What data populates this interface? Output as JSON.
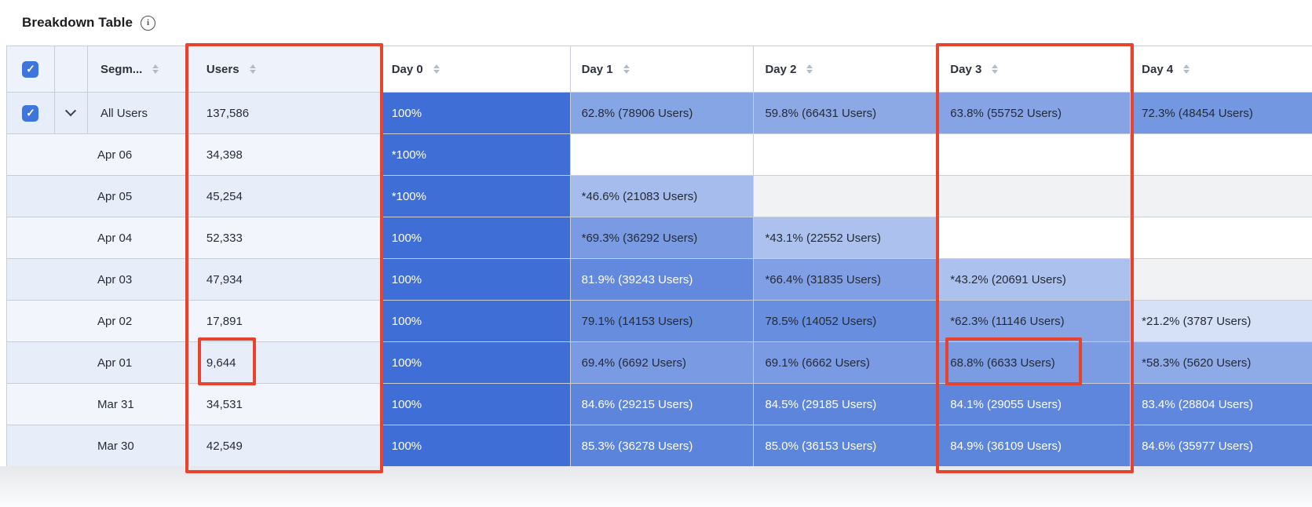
{
  "title": "Breakdown Table",
  "columns": {
    "segment": "Segm...",
    "users": "Users",
    "days": [
      "Day 0",
      "Day 1",
      "Day 2",
      "Day 3",
      "Day 4"
    ]
  },
  "rows": [
    {
      "segment": "All Users",
      "users": "137,586",
      "summary": true,
      "checked": true,
      "expanded": true,
      "days": [
        {
          "label": "100%",
          "pct": 100
        },
        {
          "label": "62.8% (78906 Users)",
          "pct": 62.8
        },
        {
          "label": "59.8% (66431 Users)",
          "pct": 59.8
        },
        {
          "label": "63.8% (55752 Users)",
          "pct": 63.8
        },
        {
          "label": "72.3% (48454 Users)",
          "pct": 72.3
        }
      ]
    },
    {
      "segment": "Apr 06",
      "users": "34,398",
      "days": [
        {
          "label": "*100%",
          "pct": 100
        },
        null,
        null,
        null,
        null
      ]
    },
    {
      "segment": "Apr 05",
      "users": "45,254",
      "days": [
        {
          "label": "*100%",
          "pct": 100
        },
        {
          "label": "*46.6% (21083 Users)",
          "pct": 46.6
        },
        null,
        null,
        null
      ]
    },
    {
      "segment": "Apr 04",
      "users": "52,333",
      "days": [
        {
          "label": "100%",
          "pct": 100
        },
        {
          "label": "*69.3% (36292 Users)",
          "pct": 69.3
        },
        {
          "label": "*43.1% (22552 Users)",
          "pct": 43.1
        },
        null,
        null
      ]
    },
    {
      "segment": "Apr 03",
      "users": "47,934",
      "days": [
        {
          "label": "100%",
          "pct": 100
        },
        {
          "label": "81.9% (39243 Users)",
          "pct": 81.9
        },
        {
          "label": "*66.4% (31835 Users)",
          "pct": 66.4
        },
        {
          "label": "*43.2% (20691 Users)",
          "pct": 43.2
        },
        null
      ]
    },
    {
      "segment": "Apr 02",
      "users": "17,891",
      "days": [
        {
          "label": "100%",
          "pct": 100
        },
        {
          "label": "79.1% (14153 Users)",
          "pct": 79.1
        },
        {
          "label": "78.5% (14052 Users)",
          "pct": 78.5
        },
        {
          "label": "*62.3% (11146 Users)",
          "pct": 62.3
        },
        {
          "label": "*21.2% (3787 Users)",
          "pct": 21.2
        }
      ]
    },
    {
      "segment": "Apr 01",
      "users": "9,644",
      "days": [
        {
          "label": "100%",
          "pct": 100
        },
        {
          "label": "69.4% (6692 Users)",
          "pct": 69.4
        },
        {
          "label": "69.1% (6662 Users)",
          "pct": 69.1
        },
        {
          "label": "68.8% (6633 Users)",
          "pct": 68.8
        },
        {
          "label": "*58.3% (5620 Users)",
          "pct": 58.3
        }
      ]
    },
    {
      "segment": "Mar 31",
      "users": "34,531",
      "days": [
        {
          "label": "100%",
          "pct": 100
        },
        {
          "label": "84.6% (29215 Users)",
          "pct": 84.6
        },
        {
          "label": "84.5% (29185 Users)",
          "pct": 84.5
        },
        {
          "label": "84.1% (29055 Users)",
          "pct": 84.1
        },
        {
          "label": "83.4% (28804 Users)",
          "pct": 83.4
        }
      ]
    },
    {
      "segment": "Mar 30",
      "users": "42,549",
      "days": [
        {
          "label": "100%",
          "pct": 100
        },
        {
          "label": "85.3% (36278 Users)",
          "pct": 85.3
        },
        {
          "label": "85.0% (36153 Users)",
          "pct": 85.0
        },
        {
          "label": "84.9% (36109 Users)",
          "pct": 84.9
        },
        {
          "label": "84.6% (35977 Users)",
          "pct": 84.6
        }
      ]
    }
  ],
  "icons": {
    "checkmark": "✓"
  },
  "heat": {
    "max_color": "#3f6fd6",
    "min_color": "#ffffff",
    "white_text_threshold": 80,
    "dark_text_color": "#242b38",
    "white_text_color": "#ffffff"
  },
  "colors": {
    "annotation": "#e8432d",
    "checkbox_blue": "#3e75dc",
    "grid_line": "#c9ced6",
    "header_left_bg": "#eef3fb",
    "row_left_dark": "#e7eef9",
    "row_left_light": "#f2f6fc",
    "empty_cell_dark": "#f1f2f4",
    "empty_cell_light": "#ffffff"
  }
}
